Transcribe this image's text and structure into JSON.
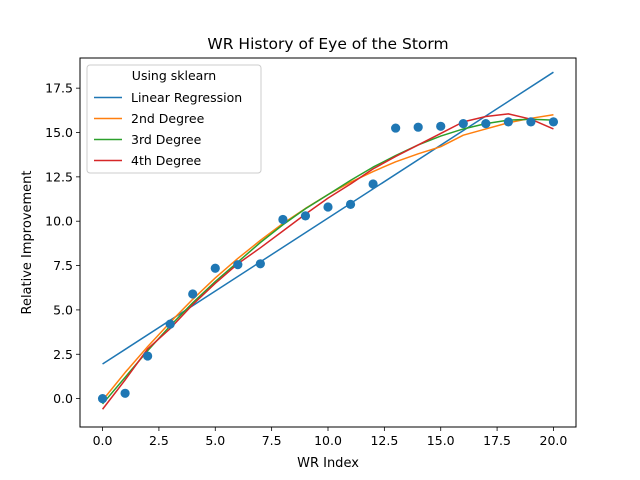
{
  "chart_data": {
    "type": "scatter",
    "title": "WR History of Eye of the Storm",
    "xlabel": "WR Index",
    "ylabel": "Relative Improvement",
    "xlim": [
      -1,
      21
    ],
    "ylim": [
      -1.6,
      19.2
    ],
    "xticks": [
      0.0,
      2.5,
      5.0,
      7.5,
      10.0,
      12.5,
      15.0,
      17.5,
      20.0
    ],
    "xtick_labels": [
      "0.0",
      "2.5",
      "5.0",
      "7.5",
      "10.0",
      "12.5",
      "15.0",
      "17.5",
      "20.0"
    ],
    "yticks": [
      0.0,
      2.5,
      5.0,
      7.5,
      10.0,
      12.5,
      15.0,
      17.5
    ],
    "ytick_labels": [
      "0.0",
      "2.5",
      "5.0",
      "7.5",
      "10.0",
      "12.5",
      "15.0",
      "17.5"
    ],
    "grid": false,
    "legend": {
      "title": "Using sklearn",
      "placement": "upper-left",
      "entries": [
        "Linear Regression",
        "2nd Degree",
        "3rd Degree",
        "4th Degree"
      ]
    },
    "scatter": {
      "color": "#1f77b4",
      "x": [
        0,
        1,
        2,
        3,
        4,
        5,
        6,
        7,
        8,
        9,
        10,
        11,
        12,
        13,
        14,
        15,
        16,
        17,
        18,
        19,
        20
      ],
      "y": [
        0.0,
        0.3,
        2.4,
        4.2,
        5.9,
        7.35,
        7.55,
        7.6,
        10.1,
        10.3,
        10.8,
        10.95,
        12.1,
        15.25,
        15.3,
        15.35,
        15.5,
        15.5,
        15.6,
        15.6,
        15.6
      ]
    },
    "series": [
      {
        "name": "Linear Regression",
        "color": "#1f77b4",
        "x": [
          0,
          20
        ],
        "y": [
          1.95,
          18.4
        ]
      },
      {
        "name": "2nd Degree",
        "color": "#ff7f0e",
        "x": [
          0,
          1,
          2,
          3,
          4,
          5,
          6,
          7,
          8,
          9,
          10,
          11,
          12,
          13,
          14,
          15,
          16,
          17,
          18,
          19,
          20
        ],
        "y": [
          -0.1,
          1.47,
          2.93,
          4.3,
          5.6,
          6.8,
          7.9,
          8.92,
          9.87,
          10.72,
          11.5,
          12.2,
          12.8,
          13.35,
          13.8,
          14.2,
          14.85,
          15.2,
          15.55,
          15.8,
          16.0
        ]
      },
      {
        "name": "3rd Degree",
        "color": "#2ca02c",
        "x": [
          0,
          1,
          2,
          3,
          4,
          5,
          6,
          7,
          8,
          9,
          10,
          11,
          12,
          13,
          14,
          15,
          16,
          17,
          18,
          19,
          20
        ],
        "y": [
          -0.3,
          1.2,
          2.7,
          4.1,
          5.4,
          6.6,
          7.7,
          8.8,
          9.8,
          10.7,
          11.5,
          12.3,
          13.05,
          13.7,
          14.3,
          14.8,
          15.2,
          15.5,
          15.7,
          15.75,
          15.7
        ]
      },
      {
        "name": "4th Degree",
        "color": "#d62728",
        "x": [
          0,
          1,
          2,
          3,
          4,
          5,
          6,
          7,
          8,
          9,
          10,
          11,
          12,
          13,
          14,
          15,
          16,
          17,
          18,
          19,
          20
        ],
        "y": [
          -0.6,
          1.05,
          2.8,
          3.95,
          5.3,
          6.5,
          7.6,
          8.5,
          9.45,
          10.4,
          11.3,
          12.1,
          12.95,
          13.65,
          14.3,
          14.95,
          15.6,
          15.9,
          16.05,
          15.75,
          15.2
        ]
      }
    ]
  }
}
